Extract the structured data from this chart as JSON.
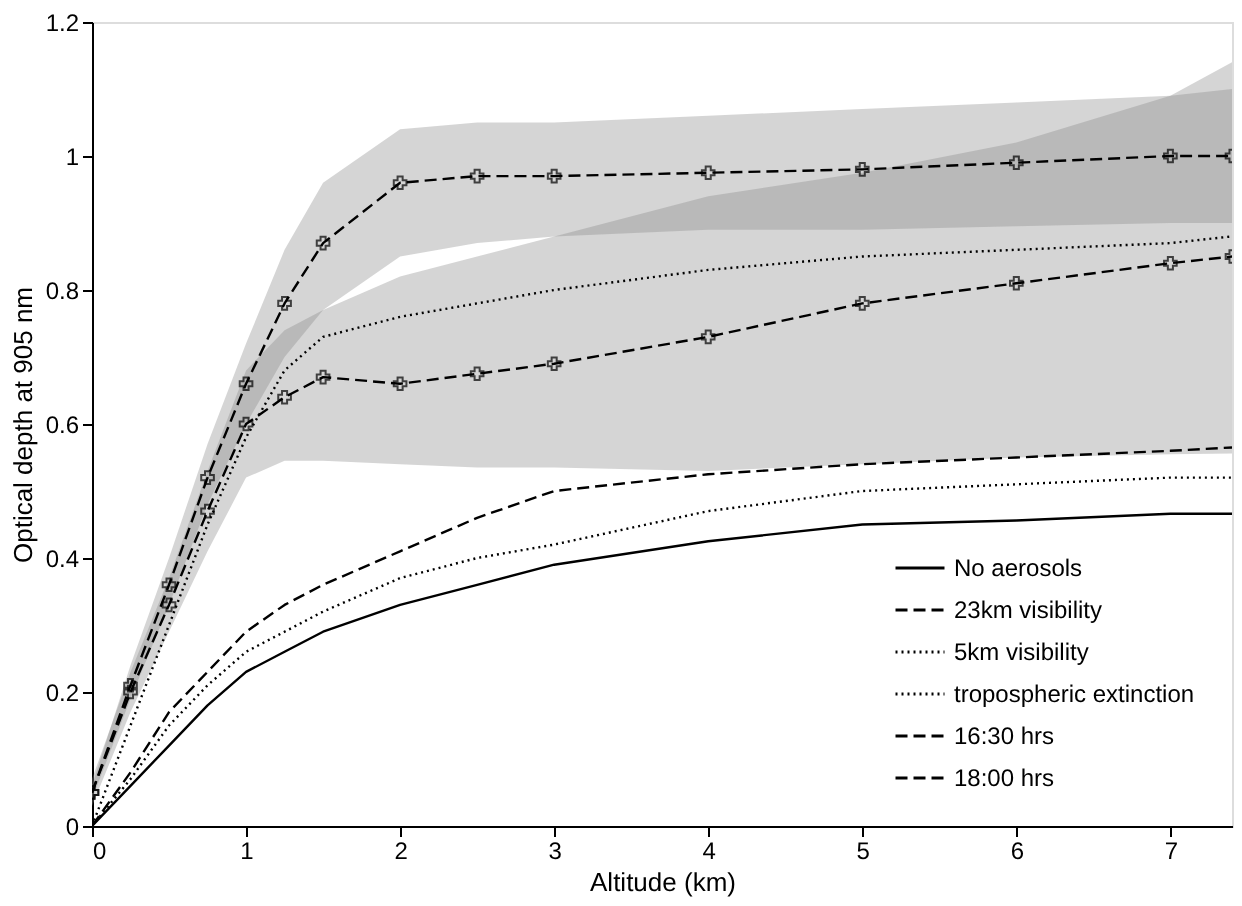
{
  "chart_data": {
    "type": "line",
    "xlabel": "Altitude (km)",
    "ylabel": "Optical depth at 905 nm",
    "x": [
      0,
      0.25,
      0.5,
      0.75,
      1,
      1.25,
      1.5,
      2,
      2.5,
      3,
      4,
      5,
      6,
      7,
      7.4
    ],
    "xlim": [
      0,
      7.4
    ],
    "xticks": [
      0,
      1,
      2,
      3,
      4,
      5,
      6,
      7
    ],
    "ylim": [
      0,
      1.2
    ],
    "yticks": [
      0,
      0.2,
      0.4,
      0.6,
      0.8,
      1,
      1.2
    ],
    "grid": false,
    "legend": "bottom right",
    "series": [
      {
        "name": "No aerosols",
        "color": "#000000",
        "line_style": "solid",
        "values": [
          0,
          0.06,
          0.12,
          0.18,
          0.23,
          0.26,
          0.29,
          0.33,
          0.36,
          0.39,
          0.425,
          0.45,
          0.456,
          0.466,
          0.466
        ]
      },
      {
        "name": "23km visibility",
        "color": "#000000",
        "line_style": "dashed",
        "values": [
          0,
          0.08,
          0.17,
          0.23,
          0.29,
          0.33,
          0.36,
          0.41,
          0.46,
          0.5,
          0.525,
          0.54,
          0.55,
          0.56,
          0.565
        ]
      },
      {
        "name": "5km visibility",
        "color": "#000000",
        "line_style": "dotted",
        "values": [
          0,
          0.07,
          0.15,
          0.21,
          0.26,
          0.29,
          0.32,
          0.37,
          0.4,
          0.42,
          0.47,
          0.5,
          0.51,
          0.52,
          0.52
        ]
      },
      {
        "name": "tropospheric extinction",
        "color": "#000000",
        "line_style": "dotted",
        "values": [
          0,
          0.15,
          0.3,
          0.45,
          0.58,
          0.68,
          0.73,
          0.76,
          0.78,
          0.8,
          0.83,
          0.85,
          0.86,
          0.87,
          0.88
        ]
      },
      {
        "name": "16:30 hrs",
        "color": "#000000",
        "line_style": "dashed",
        "marker": "cross",
        "values": [
          0.05,
          0.2,
          0.33,
          0.47,
          0.6,
          0.64,
          0.67,
          0.66,
          0.675,
          0.69,
          0.73,
          0.78,
          0.81,
          0.84,
          0.85
        ],
        "lower": [
          0.03,
          0.17,
          0.29,
          0.41,
          0.52,
          0.545,
          0.545,
          0.54,
          0.535,
          0.535,
          0.53,
          0.54,
          0.55,
          0.555,
          0.556
        ],
        "upper": [
          0.07,
          0.23,
          0.37,
          0.53,
          0.68,
          0.74,
          0.77,
          0.82,
          0.85,
          0.88,
          0.94,
          0.975,
          1.02,
          1.09,
          1.14
        ]
      },
      {
        "name": "18:00 hrs",
        "color": "#000000",
        "line_style": "dashed",
        "marker": "cross",
        "values": [
          0.05,
          0.21,
          0.36,
          0.52,
          0.66,
          0.78,
          0.87,
          0.96,
          0.97,
          0.97,
          0.975,
          0.98,
          0.99,
          1.0,
          1.0
        ],
        "lower": [
          0.04,
          0.19,
          0.33,
          0.48,
          0.6,
          0.7,
          0.77,
          0.85,
          0.87,
          0.88,
          0.89,
          0.89,
          0.895,
          0.9,
          0.9
        ],
        "upper": [
          0.06,
          0.24,
          0.4,
          0.57,
          0.72,
          0.86,
          0.96,
          1.04,
          1.05,
          1.05,
          1.06,
          1.07,
          1.08,
          1.09,
          1.1
        ]
      }
    ]
  }
}
